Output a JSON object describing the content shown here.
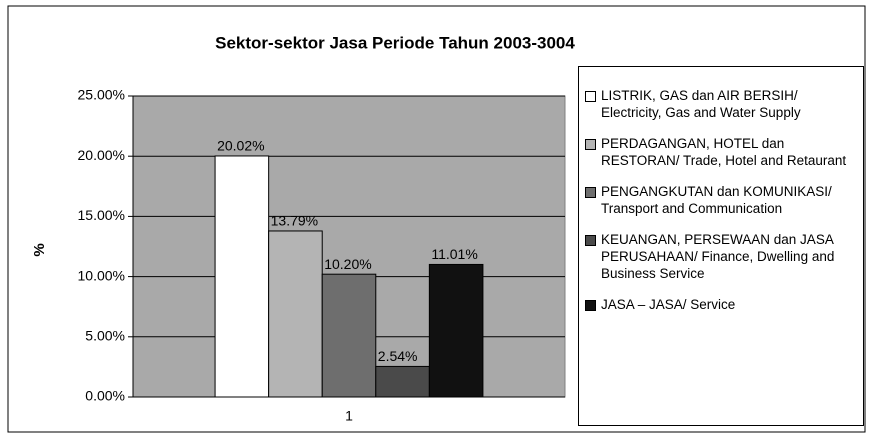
{
  "chart_data": {
    "type": "bar",
    "title": "Sektor-sektor Jasa Periode Tahun 2003-3004",
    "ylabel": "%",
    "categories": [
      "1"
    ],
    "series": [
      {
        "name": "LISTRIK, GAS dan AIR BERSIH/ Electricity, Gas and Water Supply",
        "color": "#ffffff",
        "values": [
          20.02
        ],
        "value_labels": [
          "20.02%"
        ]
      },
      {
        "name": "PERDAGANGAN, HOTEL dan RESTORAN/ Trade, Hotel and Retaurant",
        "color": "#b4b4b4",
        "values": [
          13.79
        ],
        "value_labels": [
          "13.79%"
        ]
      },
      {
        "name": "PENGANGKUTAN dan KOMUNIKASI/ Transport and Communication",
        "color": "#6e6e6e",
        "values": [
          10.2
        ],
        "value_labels": [
          "10.20%"
        ]
      },
      {
        "name": "KEUANGAN, PERSEWAAN dan JASA PERUSAHAAN/ Finance, Dwelling and Business Service",
        "color": "#4a4a4a",
        "values": [
          2.54
        ],
        "value_labels": [
          "2.54%"
        ]
      },
      {
        "name": "JASA – JASA/ Service",
        "color": "#111111",
        "values": [
          11.01
        ],
        "value_labels": [
          "11.01%"
        ]
      }
    ],
    "ylim": [
      0,
      25
    ],
    "yticks": [
      {
        "value": 0,
        "label": "0.00%"
      },
      {
        "value": 5,
        "label": "5.00%"
      },
      {
        "value": 10,
        "label": "10.00%"
      },
      {
        "value": 15,
        "label": "15.00%"
      },
      {
        "value": 20,
        "label": "20.00%"
      },
      {
        "value": 25,
        "label": "25.00%"
      }
    ],
    "grid": true,
    "legend": "right"
  }
}
